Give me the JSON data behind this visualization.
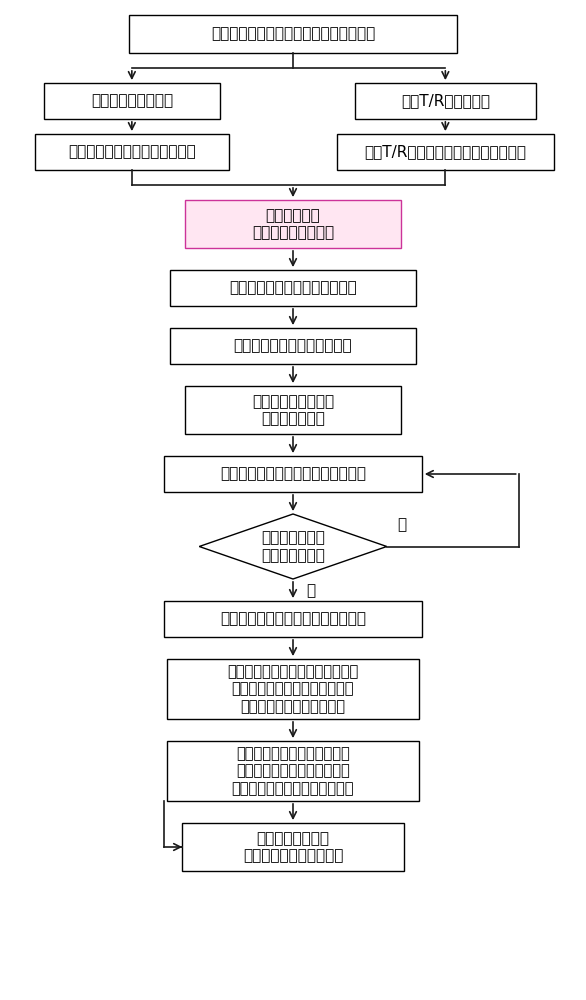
{
  "bg_color": "#ffffff",
  "text_color": "#000000",
  "box_edge": "#000000",
  "pink_edge": "#cc3399",
  "pink_fill": "#ffe6f2",
  "arrow_color": "#1a1a1a",
  "nodes": {
    "start": {
      "text": "确定星载有源相控阵天线结构及电磁参数"
    },
    "left1": {
      "text": "确定天线环境热载荷"
    },
    "right1": {
      "text": "确定T/R组件热功耗"
    },
    "left2": {
      "text": "计算太阳照射下天线温度场分布"
    },
    "right2": {
      "text": "计算T/R组件热功耗下天线温度场分布"
    },
    "merge": {
      "text": "叠加温度场，\n计算天线结构热变形"
    },
    "b3": {
      "text": "提取阵元几何中心的位置偏移量"
    },
    "b4": {
      "text": "计算阵元空间相位的附加误差"
    },
    "b5": {
      "text": "确定阵元激励电流的\n幅度和相位分布"
    },
    "b6": {
      "text": "基于机电耦合模型，计算天线电性能"
    },
    "diam": {
      "text": "增益和指向是否\n同时满足要求？"
    },
    "b7": {
      "text": "计算天线理想主波束指向的单位矢量"
    },
    "b8": {
      "text": "根据理想主波束指向的单位矢量，\n利用阵元空间相位的附加误差，\n计算阵元空间相位的调整量"
    },
    "b9": {
      "text": "根据阵元激励电流初始相位，\n利用阵元空间相位的调整量，\n计算补偿后阵元激励电流相位值"
    },
    "b10": {
      "text": "补偿结构热变形的\n激励电流相位最佳调整量"
    }
  },
  "yes_label": "是",
  "no_label": "否",
  "font_size": 11
}
